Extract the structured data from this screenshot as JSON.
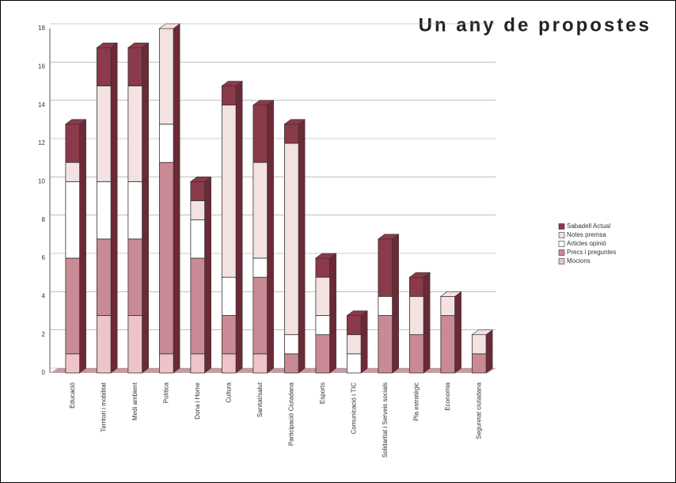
{
  "chart_data": {
    "type": "stacked_bar",
    "title": "Un any de propostes",
    "categories": [
      "Educació",
      "Territori i mobilitat",
      "Medi ambient",
      "Política",
      "Dona i Home",
      "Cultura",
      "Sanitat/salut",
      "Participació Ciutadana",
      "Esports",
      "Comunicació i TIC",
      "Solidaritat i Serveis socials",
      "Pla estratègic",
      "Economia",
      "Seguretat ciutadana"
    ],
    "series": [
      {
        "name": "Mocions",
        "color": "#eec4c8",
        "values": [
          1,
          3,
          3,
          1,
          1,
          1,
          1,
          0,
          0,
          0,
          0,
          0,
          0,
          0
        ]
      },
      {
        "name": "Precs i preguntes",
        "color": "#c98a95",
        "values": [
          5,
          4,
          4,
          10,
          5,
          2,
          4,
          1,
          2,
          0,
          3,
          2,
          3,
          1
        ]
      },
      {
        "name": "Articles opinió",
        "color": "#ffffff",
        "values": [
          4,
          3,
          3,
          2,
          2,
          2,
          1,
          1,
          1,
          1,
          1,
          0,
          0,
          0
        ]
      },
      {
        "name": "Notes premsa",
        "color": "#f4e2e2",
        "values": [
          1,
          5,
          5,
          5,
          1,
          9,
          5,
          10,
          2,
          1,
          0,
          2,
          1,
          1
        ]
      },
      {
        "name": "Sabadell Actual",
        "color": "#8b3a4a",
        "values": [
          2,
          2,
          2,
          0,
          1,
          1,
          3,
          1,
          1,
          1,
          3,
          1,
          0,
          0
        ]
      }
    ],
    "ylim": [
      0,
      18
    ],
    "yticks": [
      0,
      2,
      4,
      6,
      8,
      10,
      12,
      14,
      16,
      18
    ],
    "grid": true,
    "legend": "right"
  }
}
